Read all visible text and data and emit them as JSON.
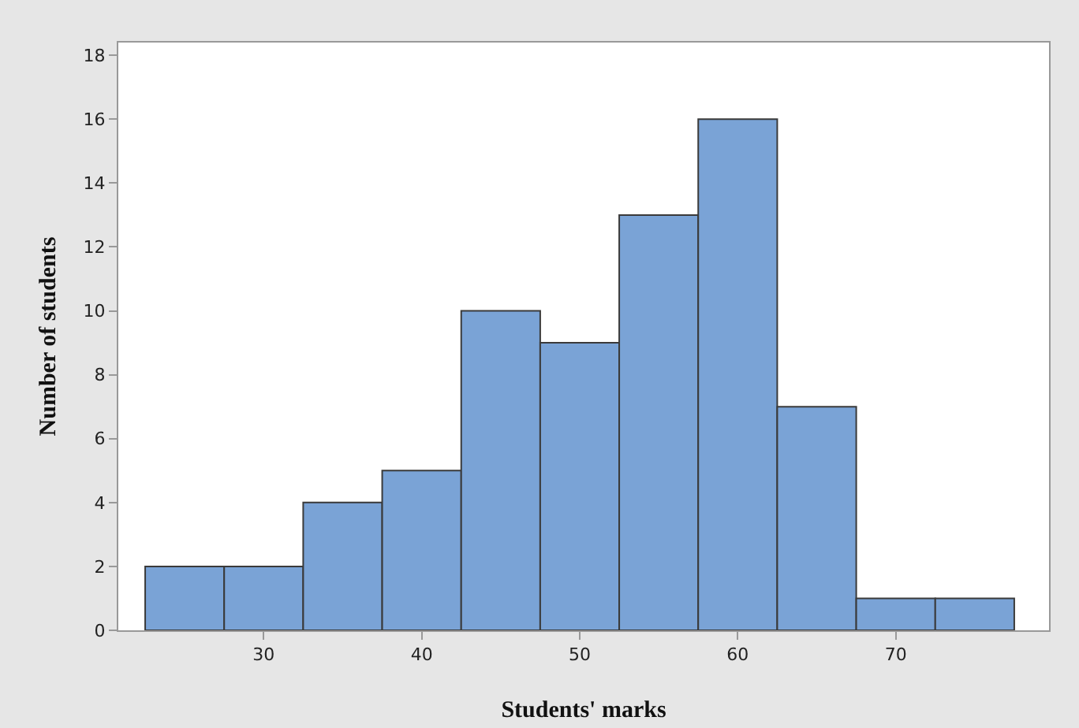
{
  "chart_data": {
    "type": "histogram",
    "xlabel": "Students' marks",
    "ylabel": "Number of students",
    "bins": [
      22.5,
      27.5,
      32.5,
      37.5,
      42.5,
      47.5,
      52.5,
      57.5,
      62.5,
      67.5,
      72.5,
      77.5
    ],
    "values": [
      2,
      2,
      4,
      5,
      10,
      9,
      13,
      16,
      7,
      1,
      1
    ],
    "color": "#7aa3d6",
    "xlim": [
      20.8,
      79.7
    ],
    "xticks": [
      30,
      40,
      50,
      60,
      70
    ],
    "ylim": [
      0,
      18.4
    ],
    "yticks": [
      0,
      2,
      4,
      6,
      8,
      10,
      12,
      14,
      16,
      18
    ],
    "grid": false
  }
}
